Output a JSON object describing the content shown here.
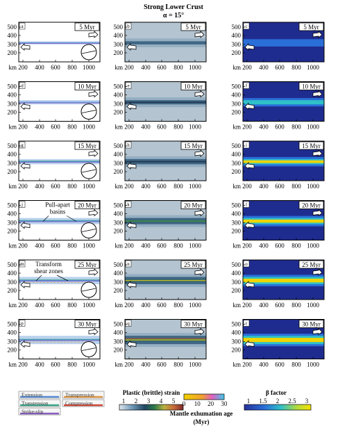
{
  "header": {
    "title": "Strong Lower Crust",
    "subtitle": "α = 15°"
  },
  "y_ticks": [
    "500",
    "400",
    "300",
    "200"
  ],
  "x_ticks": [
    "200",
    "400",
    "600",
    "800",
    "1000"
  ],
  "unit": "km",
  "rows": [
    {
      "time": "5 Myr",
      "letters": [
        "a",
        "b",
        "c"
      ]
    },
    {
      "time": "10 Myr",
      "letters": [
        "d",
        "e",
        "f"
      ]
    },
    {
      "time": "15 Myr",
      "letters": [
        "g",
        "h",
        "i"
      ]
    },
    {
      "time": "20 Myr",
      "letters": [
        "j",
        "k",
        "l"
      ]
    },
    {
      "time": "25 Myr",
      "letters": [
        "m",
        "n",
        "o"
      ]
    },
    {
      "time": "30 Myr",
      "letters": [
        "p",
        "q",
        "r"
      ]
    }
  ],
  "annotations": {
    "pull_apart": [
      "Pull-apart",
      "basins"
    ],
    "transform": [
      "Transform",
      "shear zones"
    ]
  },
  "legend": {
    "items": [
      {
        "label": "Extension",
        "color": "#5b8fd6"
      },
      {
        "label": "Transpression",
        "color": "#e39a4a"
      },
      {
        "label": "Transtension",
        "color": "#3aa58a"
      },
      {
        "label": "Compression",
        "color": "#d0473a"
      },
      {
        "label": "Strike-slip",
        "color": "#8a5fc0"
      }
    ]
  },
  "colorbars": {
    "strain": {
      "title": "Plastic (brittle) strain",
      "ticks": [
        "1",
        "2",
        "3",
        "4",
        "5"
      ]
    },
    "exhumation": {
      "title_lines": [
        "Mantle exhumation age",
        "(Myr)"
      ],
      "ticks": [
        "0",
        "10",
        "20",
        "30"
      ]
    },
    "beta": {
      "title": "β factor",
      "ticks": [
        "1",
        "1.5",
        "2",
        "2.5",
        "3"
      ]
    }
  },
  "colors": {
    "band_dark": "#243a52",
    "yellow": "#f0d400",
    "beta_bg": "#1f2c8f",
    "strain_bg": "#b4c4d0"
  }
}
